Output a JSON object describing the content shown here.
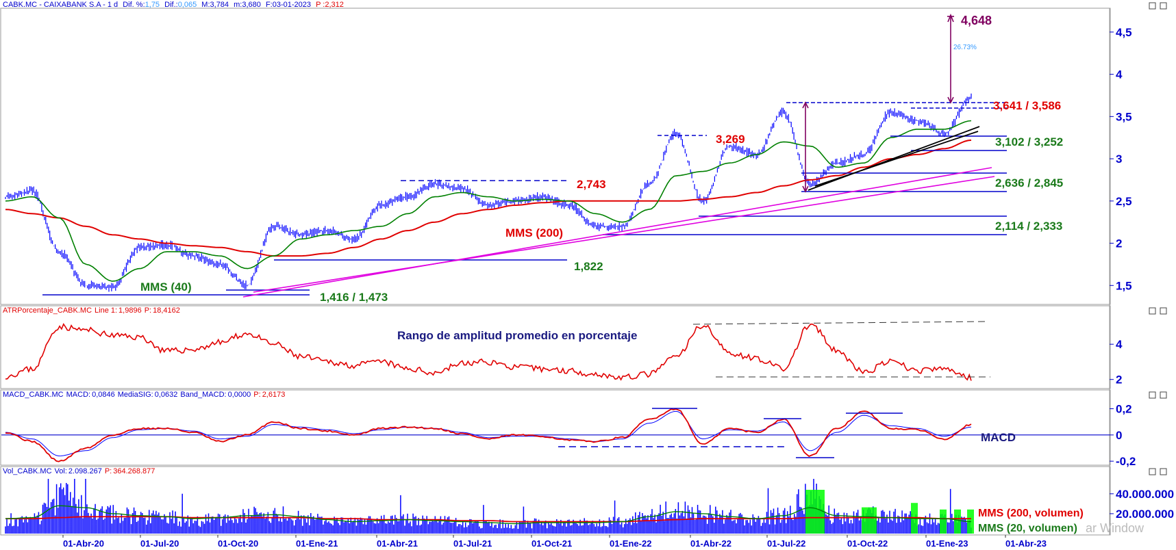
{
  "header": {
    "symbol": "CABK.MC",
    "name": "CAIXABANK S.A",
    "period": "1 d",
    "dif_pct_label": "Dif. %:",
    "dif_pct": "1,75",
    "dif_label": "Dif.:",
    "dif": "0,065",
    "max_label": "M:",
    "max": "3,784",
    "min_label": "m:",
    "min": "3,680",
    "date_label": "F:",
    "date": "03-01-2023",
    "price_label": "P :",
    "price": "2,312"
  },
  "panels": {
    "atr": {
      "label": "ATRPorcentaje_CABK.MC",
      "line_label": "Line 1:",
      "line": "1,9896",
      "p_label": "P:",
      "p": "18,4162"
    },
    "macd": {
      "label": "MACD_CABK.MC",
      "macd_label": "MACD:",
      "macd": "0,0846",
      "sig_label": "MediaSIG:",
      "sig": "0,0632",
      "band_label": "Band_MACD:",
      "band": "0,0000",
      "p_label": "P:",
      "p": "2,6173"
    },
    "vol": {
      "label": "Vol_CABK.MC",
      "vol_label": "Vol:",
      "vol": "2.098.267",
      "p_label": "P:",
      "p": "364.268.877"
    }
  },
  "annotations": {
    "target": "4,648",
    "pct": "26.73%",
    "res1": "3,641 / 3,586",
    "sup1": "3,102 / 3,252",
    "level_3269": "3,269",
    "level_2743": "2,743",
    "sup2": "2,636 / 2,845",
    "mms200": "MMS (200)",
    "sup3": "2,114 / 2,333",
    "level_1822": "1,822",
    "mms40": "MMS (40)",
    "sup4": "1,416 / 1,473",
    "atr_title": "Rango de amplitud promedio en porcentaje",
    "macd_title": "MACD",
    "vol_mms200": "MMS (200, volumen)",
    "vol_mms20": "MMS (20, volumen)",
    "watermark": "ar Window"
  },
  "x_axis": {
    "labels": [
      "01-Abr-20",
      "01-Jul-20",
      "01-Oct-20",
      "01-Ene-21",
      "01-Abr-21",
      "01-Jul-21",
      "01-Oct-21",
      "01-Ene-22",
      "01-Abr-22",
      "01-Jul-22",
      "01-Oct-22",
      "01-Ene-23",
      "01-Abr-23"
    ]
  },
  "colors": {
    "price": "#0000ff",
    "mms40": "#008000",
    "mms200": "#e00000",
    "trend": "#e000e0",
    "atr": "#e00000",
    "macd": "#e00000",
    "signal": "#0000ff",
    "volume": "#0000ff",
    "vol_highlight": "#00ff00",
    "axis_text": "#0000cc",
    "annot_red": "#e00000",
    "annot_green": "#1a7a1a",
    "annot_purple": "#800060",
    "annot_navy": "#1a1a80"
  },
  "chart_data": [
    {
      "type": "line",
      "panel": "price",
      "y_ticks": [
        "1,5",
        "2",
        "2,5",
        "3",
        "3,5",
        "4",
        "4,5"
      ],
      "ylim": [
        1.3,
        4.75
      ],
      "x": [
        "2020-01",
        "2020-02",
        "2020-03",
        "2020-04",
        "2020-05",
        "2020-06",
        "2020-07",
        "2020-08",
        "2020-09",
        "2020-10",
        "2020-11",
        "2020-12",
        "2021-01",
        "2021-02",
        "2021-03",
        "2021-04",
        "2021-05",
        "2021-06",
        "2021-07",
        "2021-08",
        "2021-09",
        "2021-10",
        "2021-11",
        "2021-12",
        "2022-01",
        "2022-02",
        "2022-03",
        "2022-04",
        "2022-05",
        "2022-06",
        "2022-07",
        "2022-08",
        "2022-09",
        "2022-10",
        "2022-11",
        "2022-12",
        "2023-01"
      ],
      "series": [
        {
          "name": "CABK.MC",
          "values": [
            2.55,
            2.62,
            1.9,
            1.5,
            1.48,
            1.95,
            1.98,
            1.85,
            1.75,
            1.5,
            2.2,
            2.1,
            2.15,
            2.05,
            2.45,
            2.55,
            2.7,
            2.65,
            2.45,
            2.5,
            2.55,
            2.45,
            2.2,
            2.2,
            2.7,
            3.3,
            2.5,
            3.15,
            3.05,
            3.55,
            2.7,
            2.95,
            3.05,
            3.55,
            3.45,
            3.3,
            3.72
          ]
        },
        {
          "name": "MMS (40)",
          "values": [
            2.5,
            2.55,
            2.3,
            1.75,
            1.55,
            1.7,
            1.9,
            1.9,
            1.85,
            1.7,
            1.85,
            2.05,
            2.1,
            2.15,
            2.2,
            2.35,
            2.55,
            2.6,
            2.55,
            2.5,
            2.52,
            2.5,
            2.35,
            2.25,
            2.4,
            2.8,
            2.85,
            2.95,
            3.05,
            3.2,
            3.15,
            2.9,
            2.95,
            3.25,
            3.35,
            3.35,
            3.45
          ]
        },
        {
          "name": "MMS (200)",
          "values": [
            2.4,
            2.35,
            2.3,
            2.2,
            2.1,
            2.05,
            2.0,
            1.97,
            1.95,
            1.9,
            1.85,
            1.85,
            1.88,
            1.95,
            2.05,
            2.15,
            2.25,
            2.35,
            2.4,
            2.45,
            2.48,
            2.5,
            2.5,
            2.5,
            2.5,
            2.5,
            2.52,
            2.55,
            2.6,
            2.68,
            2.75,
            2.8,
            2.9,
            3.0,
            3.05,
            3.12,
            3.22
          ]
        }
      ]
    },
    {
      "type": "line",
      "panel": "atr",
      "y_ticks": [
        "2",
        "4"
      ],
      "ylim": [
        1.6,
        5.6
      ],
      "series": [
        {
          "name": "ATRPorcentaje_CABK.MC",
          "values": [
            2.2,
            2.6,
            5.0,
            4.8,
            4.5,
            4.4,
            3.6,
            3.7,
            4.1,
            4.6,
            4.0,
            3.3,
            3.0,
            2.8,
            3.0,
            2.6,
            2.4,
            2.9,
            3.0,
            2.7,
            2.6,
            2.5,
            2.3,
            2.1,
            2.3,
            3.3,
            5.1,
            3.5,
            3.2,
            2.6,
            5.1,
            3.6,
            2.4,
            3.0,
            2.5,
            2.6,
            2.1
          ]
        }
      ]
    },
    {
      "type": "line",
      "panel": "macd",
      "y_ticks": [
        "0,2",
        "0",
        "-0,2"
      ],
      "ylim": [
        -0.22,
        0.26
      ],
      "series": [
        {
          "name": "MACD",
          "values": [
            0.02,
            -0.05,
            -0.2,
            -0.1,
            0.0,
            0.05,
            0.05,
            0.02,
            -0.05,
            0.0,
            0.1,
            0.05,
            0.03,
            0.0,
            0.05,
            0.06,
            0.05,
            0.01,
            -0.03,
            0.0,
            -0.01,
            -0.04,
            -0.05,
            -0.02,
            0.12,
            0.2,
            -0.07,
            0.05,
            0.02,
            0.12,
            -0.16,
            0.05,
            0.18,
            0.05,
            0.04,
            -0.03,
            0.08
          ]
        },
        {
          "name": "MediaSIG",
          "values": [
            0.02,
            -0.03,
            -0.16,
            -0.12,
            -0.02,
            0.04,
            0.05,
            0.03,
            -0.03,
            -0.01,
            0.08,
            0.06,
            0.04,
            0.01,
            0.04,
            0.06,
            0.05,
            0.02,
            -0.02,
            -0.01,
            -0.01,
            -0.03,
            -0.05,
            -0.03,
            0.09,
            0.18,
            -0.03,
            0.04,
            0.03,
            0.1,
            -0.12,
            0.02,
            0.15,
            0.07,
            0.05,
            -0.01,
            0.06
          ]
        }
      ]
    },
    {
      "type": "bar",
      "panel": "volume",
      "y_ticks": [
        "40.000.000",
        "20.000.000"
      ],
      "ylim": [
        0,
        55000000
      ],
      "series": [
        {
          "name": "Vol_CABK.MC",
          "values": [
            16000000,
            15000000,
            40000000,
            30000000,
            22000000,
            20000000,
            18000000,
            14000000,
            16000000,
            20000000,
            22000000,
            17000000,
            14000000,
            12000000,
            14000000,
            15000000,
            14000000,
            12000000,
            11000000,
            10000000,
            12000000,
            11000000,
            12000000,
            13000000,
            20000000,
            28000000,
            22000000,
            18000000,
            16000000,
            20000000,
            45000000,
            18000000,
            22000000,
            20000000,
            16000000,
            18000000,
            12000000
          ]
        },
        {
          "name": "MMS (20, volumen)",
          "values": [
            15000000,
            16000000,
            28000000,
            26000000,
            20000000,
            18000000,
            17000000,
            15000000,
            16000000,
            18000000,
            19000000,
            17000000,
            14000000,
            12000000,
            13000000,
            14000000,
            13000000,
            12000000,
            11000000,
            10000000,
            11000000,
            11000000,
            11000000,
            12000000,
            17000000,
            22000000,
            20000000,
            17000000,
            15000000,
            18000000,
            26000000,
            18000000,
            17000000,
            16000000,
            15000000,
            15000000,
            12000000
          ]
        },
        {
          "name": "MMS (200, volumen)",
          "values": [
            15000000,
            15000000,
            16000000,
            17000000,
            17000000,
            17000000,
            17000000,
            16000000,
            16000000,
            16000000,
            16000000,
            16000000,
            15000000,
            15000000,
            14000000,
            14000000,
            14000000,
            13000000,
            13000000,
            12000000,
            12000000,
            12000000,
            12000000,
            12000000,
            13000000,
            14000000,
            15000000,
            15000000,
            15000000,
            15000000,
            16000000,
            16000000,
            16000000,
            16000000,
            16000000,
            15000000,
            15000000
          ]
        }
      ]
    }
  ]
}
